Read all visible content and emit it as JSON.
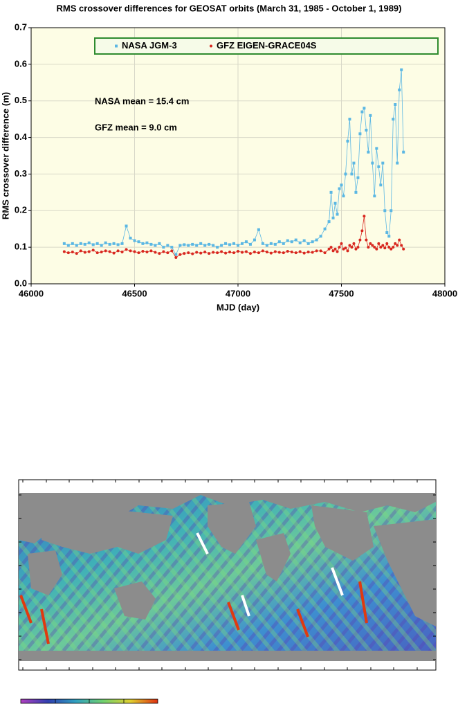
{
  "chart_data": {
    "type": "line",
    "title": "RMS crossover differences for GEOSAT orbits (March 31, 1985 - October 1, 1989)",
    "x_label": "MJD (day)",
    "y_label": "RMS crossover difference (m)",
    "annotations": [
      "NASA mean = 15.4 cm",
      "GFZ mean = 9.0 cm"
    ],
    "xlim": [
      46000,
      48000
    ],
    "xticks": [
      46000,
      46500,
      47000,
      47500,
      48000
    ],
    "ylim": [
      0,
      0.7
    ],
    "yticks": [
      {
        "value": 0,
        "label": "0.0"
      },
      0.1,
      0.2,
      0.3,
      0.4,
      0.5,
      0.6,
      0.7
    ],
    "grid": true,
    "x": [
      46160,
      46180,
      46200,
      46220,
      46240,
      46260,
      46280,
      46300,
      46320,
      46340,
      46360,
      46380,
      46400,
      46420,
      46440,
      46460,
      46480,
      46500,
      46520,
      46540,
      46560,
      46580,
      46600,
      46620,
      46640,
      46660,
      46680,
      46700,
      46720,
      46740,
      46760,
      46780,
      46800,
      46820,
      46840,
      46860,
      46880,
      46900,
      46920,
      46940,
      46960,
      46980,
      47000,
      47020,
      47040,
      47060,
      47080,
      47100,
      47120,
      47140,
      47160,
      47180,
      47200,
      47220,
      47240,
      47260,
      47280,
      47300,
      47320,
      47340,
      47360,
      47380,
      47400,
      47420,
      47440,
      47450,
      47460,
      47470,
      47480,
      47490,
      47500,
      47510,
      47520,
      47530,
      47540,
      47550,
      47560,
      47570,
      47580,
      47590,
      47600,
      47610,
      47620,
      47630,
      47640,
      47650,
      47660,
      47670,
      47680,
      47690,
      47700,
      47710,
      47720,
      47730,
      47740,
      47750,
      47760,
      47770,
      47780,
      47790,
      47800
    ],
    "series": [
      {
        "name": "NASA JGM-3",
        "color": "#5bb7e3",
        "marker": "square",
        "values": [
          0.11,
          0.105,
          0.11,
          0.105,
          0.11,
          0.108,
          0.112,
          0.107,
          0.11,
          0.105,
          0.112,
          0.108,
          0.11,
          0.107,
          0.11,
          0.158,
          0.125,
          0.118,
          0.115,
          0.11,
          0.112,
          0.108,
          0.105,
          0.11,
          0.1,
          0.105,
          0.1,
          0.08,
          0.105,
          0.107,
          0.105,
          0.108,
          0.105,
          0.11,
          0.105,
          0.108,
          0.105,
          0.1,
          0.105,
          0.11,
          0.107,
          0.11,
          0.105,
          0.11,
          0.115,
          0.108,
          0.12,
          0.148,
          0.11,
          0.105,
          0.11,
          0.108,
          0.115,
          0.11,
          0.118,
          0.115,
          0.12,
          0.112,
          0.118,
          0.11,
          0.115,
          0.12,
          0.13,
          0.15,
          0.17,
          0.25,
          0.18,
          0.22,
          0.19,
          0.26,
          0.27,
          0.24,
          0.3,
          0.39,
          0.45,
          0.3,
          0.33,
          0.25,
          0.29,
          0.41,
          0.47,
          0.48,
          0.42,
          0.36,
          0.46,
          0.33,
          0.24,
          0.37,
          0.32,
          0.27,
          0.33,
          0.2,
          0.14,
          0.13,
          0.2,
          0.45,
          0.49,
          0.33,
          0.53,
          0.585,
          0.36
        ]
      },
      {
        "name": "GFZ EIGEN-GRACE04S",
        "color": "#d8271f",
        "marker": "circle",
        "values": [
          0.088,
          0.085,
          0.087,
          0.083,
          0.09,
          0.086,
          0.088,
          0.092,
          0.085,
          0.087,
          0.09,
          0.088,
          0.084,
          0.09,
          0.087,
          0.094,
          0.09,
          0.088,
          0.085,
          0.089,
          0.087,
          0.09,
          0.086,
          0.083,
          0.088,
          0.085,
          0.09,
          0.072,
          0.08,
          0.083,
          0.085,
          0.082,
          0.086,
          0.084,
          0.087,
          0.083,
          0.086,
          0.085,
          0.088,
          0.084,
          0.087,
          0.085,
          0.089,
          0.086,
          0.088,
          0.083,
          0.087,
          0.085,
          0.09,
          0.087,
          0.084,
          0.088,
          0.086,
          0.085,
          0.089,
          0.087,
          0.085,
          0.088,
          0.084,
          0.087,
          0.086,
          0.09,
          0.09,
          0.085,
          0.095,
          0.1,
          0.09,
          0.095,
          0.088,
          0.1,
          0.11,
          0.095,
          0.098,
          0.09,
          0.105,
          0.1,
          0.11,
          0.095,
          0.1,
          0.12,
          0.145,
          0.185,
          0.12,
          0.1,
          0.11,
          0.105,
          0.1,
          0.095,
          0.11,
          0.1,
          0.105,
          0.098,
          0.11,
          0.1,
          0.095,
          0.1,
          0.11,
          0.105,
          0.12,
          0.105,
          0.095
        ]
      }
    ]
  }
}
